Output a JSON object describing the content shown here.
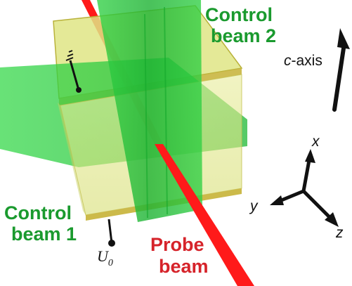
{
  "labels": {
    "control_beam_2": [
      "Control",
      "beam 2"
    ],
    "control_beam_1": [
      "Control",
      "beam 1"
    ],
    "probe_beam": [
      "Probe",
      "beam"
    ],
    "c_axis_prefix": "c",
    "c_axis_suffix": "-axis",
    "voltage_main": "U",
    "voltage_sub": "0",
    "axis_x": "x",
    "axis_y": "y",
    "axis_z": "z"
  },
  "colors": {
    "green_beam": "#22c83a",
    "green_text": "#1a9a2e",
    "red_beam": "#ff1a1a",
    "red_text": "#d6232a",
    "crystal": "#d8e07a",
    "electrode": "#c8b43a"
  },
  "icons": [
    "ground-icon",
    "c-axis-arrow-icon",
    "coordinate-axes-icon"
  ]
}
